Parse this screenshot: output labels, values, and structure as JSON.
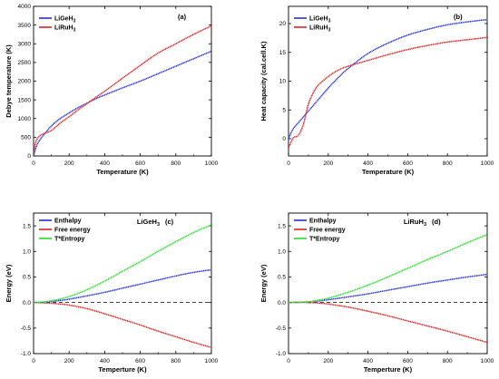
{
  "chart_data": [
    {
      "id": "a",
      "type": "line",
      "panel_label": "(a)",
      "xlabel": "Temperature (K)",
      "ylabel": "Debye temperature (K)",
      "xlim": [
        0,
        1000
      ],
      "ylim": [
        0,
        4000
      ],
      "xticks": [
        0,
        200,
        400,
        600,
        800,
        1000
      ],
      "yticks": [
        0,
        500,
        1000,
        1500,
        2000,
        2500,
        3000,
        3500,
        4000
      ],
      "legend_position": "top-left",
      "series": [
        {
          "name": "LiGeH",
          "sub": "3",
          "color": "#1f2fe0",
          "x": [
            0,
            10,
            25,
            50,
            100,
            150,
            200,
            250,
            300,
            350,
            400,
            500,
            600,
            700,
            800,
            900,
            1000
          ],
          "y": [
            0,
            170,
            350,
            520,
            800,
            1000,
            1150,
            1290,
            1410,
            1530,
            1630,
            1820,
            2000,
            2200,
            2400,
            2600,
            2800
          ]
        },
        {
          "name": "LiRuH",
          "sub": "3",
          "color": "#e02020",
          "x": [
            0,
            10,
            25,
            50,
            100,
            150,
            200,
            250,
            300,
            350,
            400,
            500,
            600,
            700,
            800,
            900,
            1000
          ],
          "y": [
            0,
            330,
            490,
            580,
            680,
            880,
            1050,
            1230,
            1400,
            1570,
            1730,
            2080,
            2420,
            2750,
            3000,
            3250,
            3480
          ]
        }
      ]
    },
    {
      "id": "b",
      "type": "line",
      "panel_label": "(b)",
      "xlabel": "Temperature (K)",
      "ylabel": "Heat capacity (cal.cell.K)",
      "xlim": [
        0,
        1000
      ],
      "ylim": [
        -3,
        23
      ],
      "xticks": [
        0,
        200,
        400,
        600,
        800,
        1000
      ],
      "yticks": [
        0,
        5,
        10,
        15,
        20
      ],
      "legend_position": "top-left",
      "series": [
        {
          "name": "LiGeH",
          "sub": "3",
          "color": "#1f2fe0",
          "x": [
            0,
            10,
            25,
            50,
            75,
            100,
            150,
            200,
            250,
            300,
            400,
            500,
            600,
            700,
            800,
            900,
            1000
          ],
          "y": [
            0,
            0.8,
            1.8,
            2.8,
            3.8,
            4.8,
            6.8,
            8.8,
            10.6,
            12.2,
            14.8,
            16.6,
            18.0,
            19.0,
            19.8,
            20.3,
            20.7
          ]
        },
        {
          "name": "LiRuH",
          "sub": "3",
          "color": "#e02020",
          "x": [
            0,
            10,
            25,
            50,
            75,
            100,
            125,
            150,
            200,
            250,
            300,
            400,
            500,
            600,
            700,
            800,
            900,
            1000
          ],
          "y": [
            -1.6,
            -0.8,
            0.2,
            0.6,
            2.5,
            6.0,
            8.0,
            9.3,
            10.8,
            11.9,
            12.6,
            13.6,
            14.6,
            15.5,
            16.2,
            16.8,
            17.2,
            17.6
          ]
        }
      ]
    },
    {
      "id": "c",
      "type": "line",
      "panel_label": "(c)",
      "compound": "LiGeH",
      "compound_sub": "3",
      "xlabel": "Temperture (K)",
      "ylabel": "Energy (eV)",
      "xlim": [
        0,
        1000
      ],
      "ylim": [
        -1.0,
        1.75
      ],
      "xticks": [
        0,
        200,
        400,
        600,
        800,
        1000
      ],
      "yticks": [
        -1.0,
        -0.5,
        0.0,
        0.5,
        1.0,
        1.5
      ],
      "ytick_labels": [
        "-1.0",
        "-0.5",
        "0.0",
        "0.5",
        "1.0",
        "1.5"
      ],
      "legend_position": "top-left",
      "zero_line": true,
      "series": [
        {
          "name": "Enthalpy",
          "color": "#1f2fe0",
          "x": [
            0,
            50,
            100,
            150,
            200,
            300,
            400,
            500,
            600,
            700,
            800,
            900,
            1000
          ],
          "y": [
            0,
            0.005,
            0.02,
            0.04,
            0.065,
            0.13,
            0.2,
            0.28,
            0.36,
            0.44,
            0.52,
            0.59,
            0.64
          ]
        },
        {
          "name": "Free energy",
          "color": "#e02020",
          "x": [
            0,
            50,
            100,
            150,
            200,
            300,
            400,
            500,
            600,
            700,
            800,
            900,
            1000
          ],
          "y": [
            0,
            -0.005,
            -0.015,
            -0.03,
            -0.05,
            -0.12,
            -0.22,
            -0.33,
            -0.44,
            -0.56,
            -0.67,
            -0.78,
            -0.88
          ]
        },
        {
          "name": "T*Entropy",
          "color": "#22e022",
          "x": [
            0,
            50,
            100,
            150,
            200,
            300,
            400,
            500,
            600,
            700,
            800,
            900,
            1000
          ],
          "y": [
            0,
            0.01,
            0.035,
            0.07,
            0.115,
            0.25,
            0.42,
            0.61,
            0.8,
            1.0,
            1.19,
            1.37,
            1.52
          ]
        }
      ]
    },
    {
      "id": "d",
      "type": "line",
      "panel_label": "(d)",
      "compound": "LiRuH",
      "compound_sub": "3",
      "xlabel": "Temperture (K)",
      "ylabel": "Energy (eV)",
      "xlim": [
        0,
        1000
      ],
      "ylim": [
        -1.0,
        1.75
      ],
      "xticks": [
        0,
        200,
        400,
        600,
        800,
        1000
      ],
      "yticks": [
        -1.0,
        -0.5,
        0.0,
        0.5,
        1.0,
        1.5
      ],
      "ytick_labels": [
        "-1.0",
        "-0.5",
        "0.0",
        "0.5",
        "1.0",
        "1.5"
      ],
      "legend_position": "top-left",
      "zero_line": true,
      "series": [
        {
          "name": "Enthalpy",
          "color": "#1f2fe0",
          "x": [
            0,
            50,
            100,
            150,
            200,
            300,
            400,
            500,
            600,
            700,
            800,
            900,
            1000
          ],
          "y": [
            0,
            0.003,
            0.012,
            0.03,
            0.055,
            0.11,
            0.17,
            0.24,
            0.31,
            0.38,
            0.44,
            0.5,
            0.55
          ]
        },
        {
          "name": "Free energy",
          "color": "#e02020",
          "x": [
            0,
            50,
            100,
            150,
            200,
            300,
            400,
            500,
            600,
            700,
            800,
            900,
            1000
          ],
          "y": [
            0,
            0.005,
            0.0,
            -0.01,
            -0.03,
            -0.09,
            -0.17,
            -0.26,
            -0.36,
            -0.46,
            -0.56,
            -0.67,
            -0.78
          ]
        },
        {
          "name": "T*Entropy",
          "color": "#22e022",
          "x": [
            0,
            50,
            100,
            150,
            200,
            300,
            400,
            500,
            600,
            700,
            800,
            900,
            1000
          ],
          "y": [
            0,
            0.0,
            0.015,
            0.045,
            0.085,
            0.2,
            0.34,
            0.5,
            0.67,
            0.84,
            1.0,
            1.17,
            1.33
          ]
        }
      ]
    }
  ]
}
